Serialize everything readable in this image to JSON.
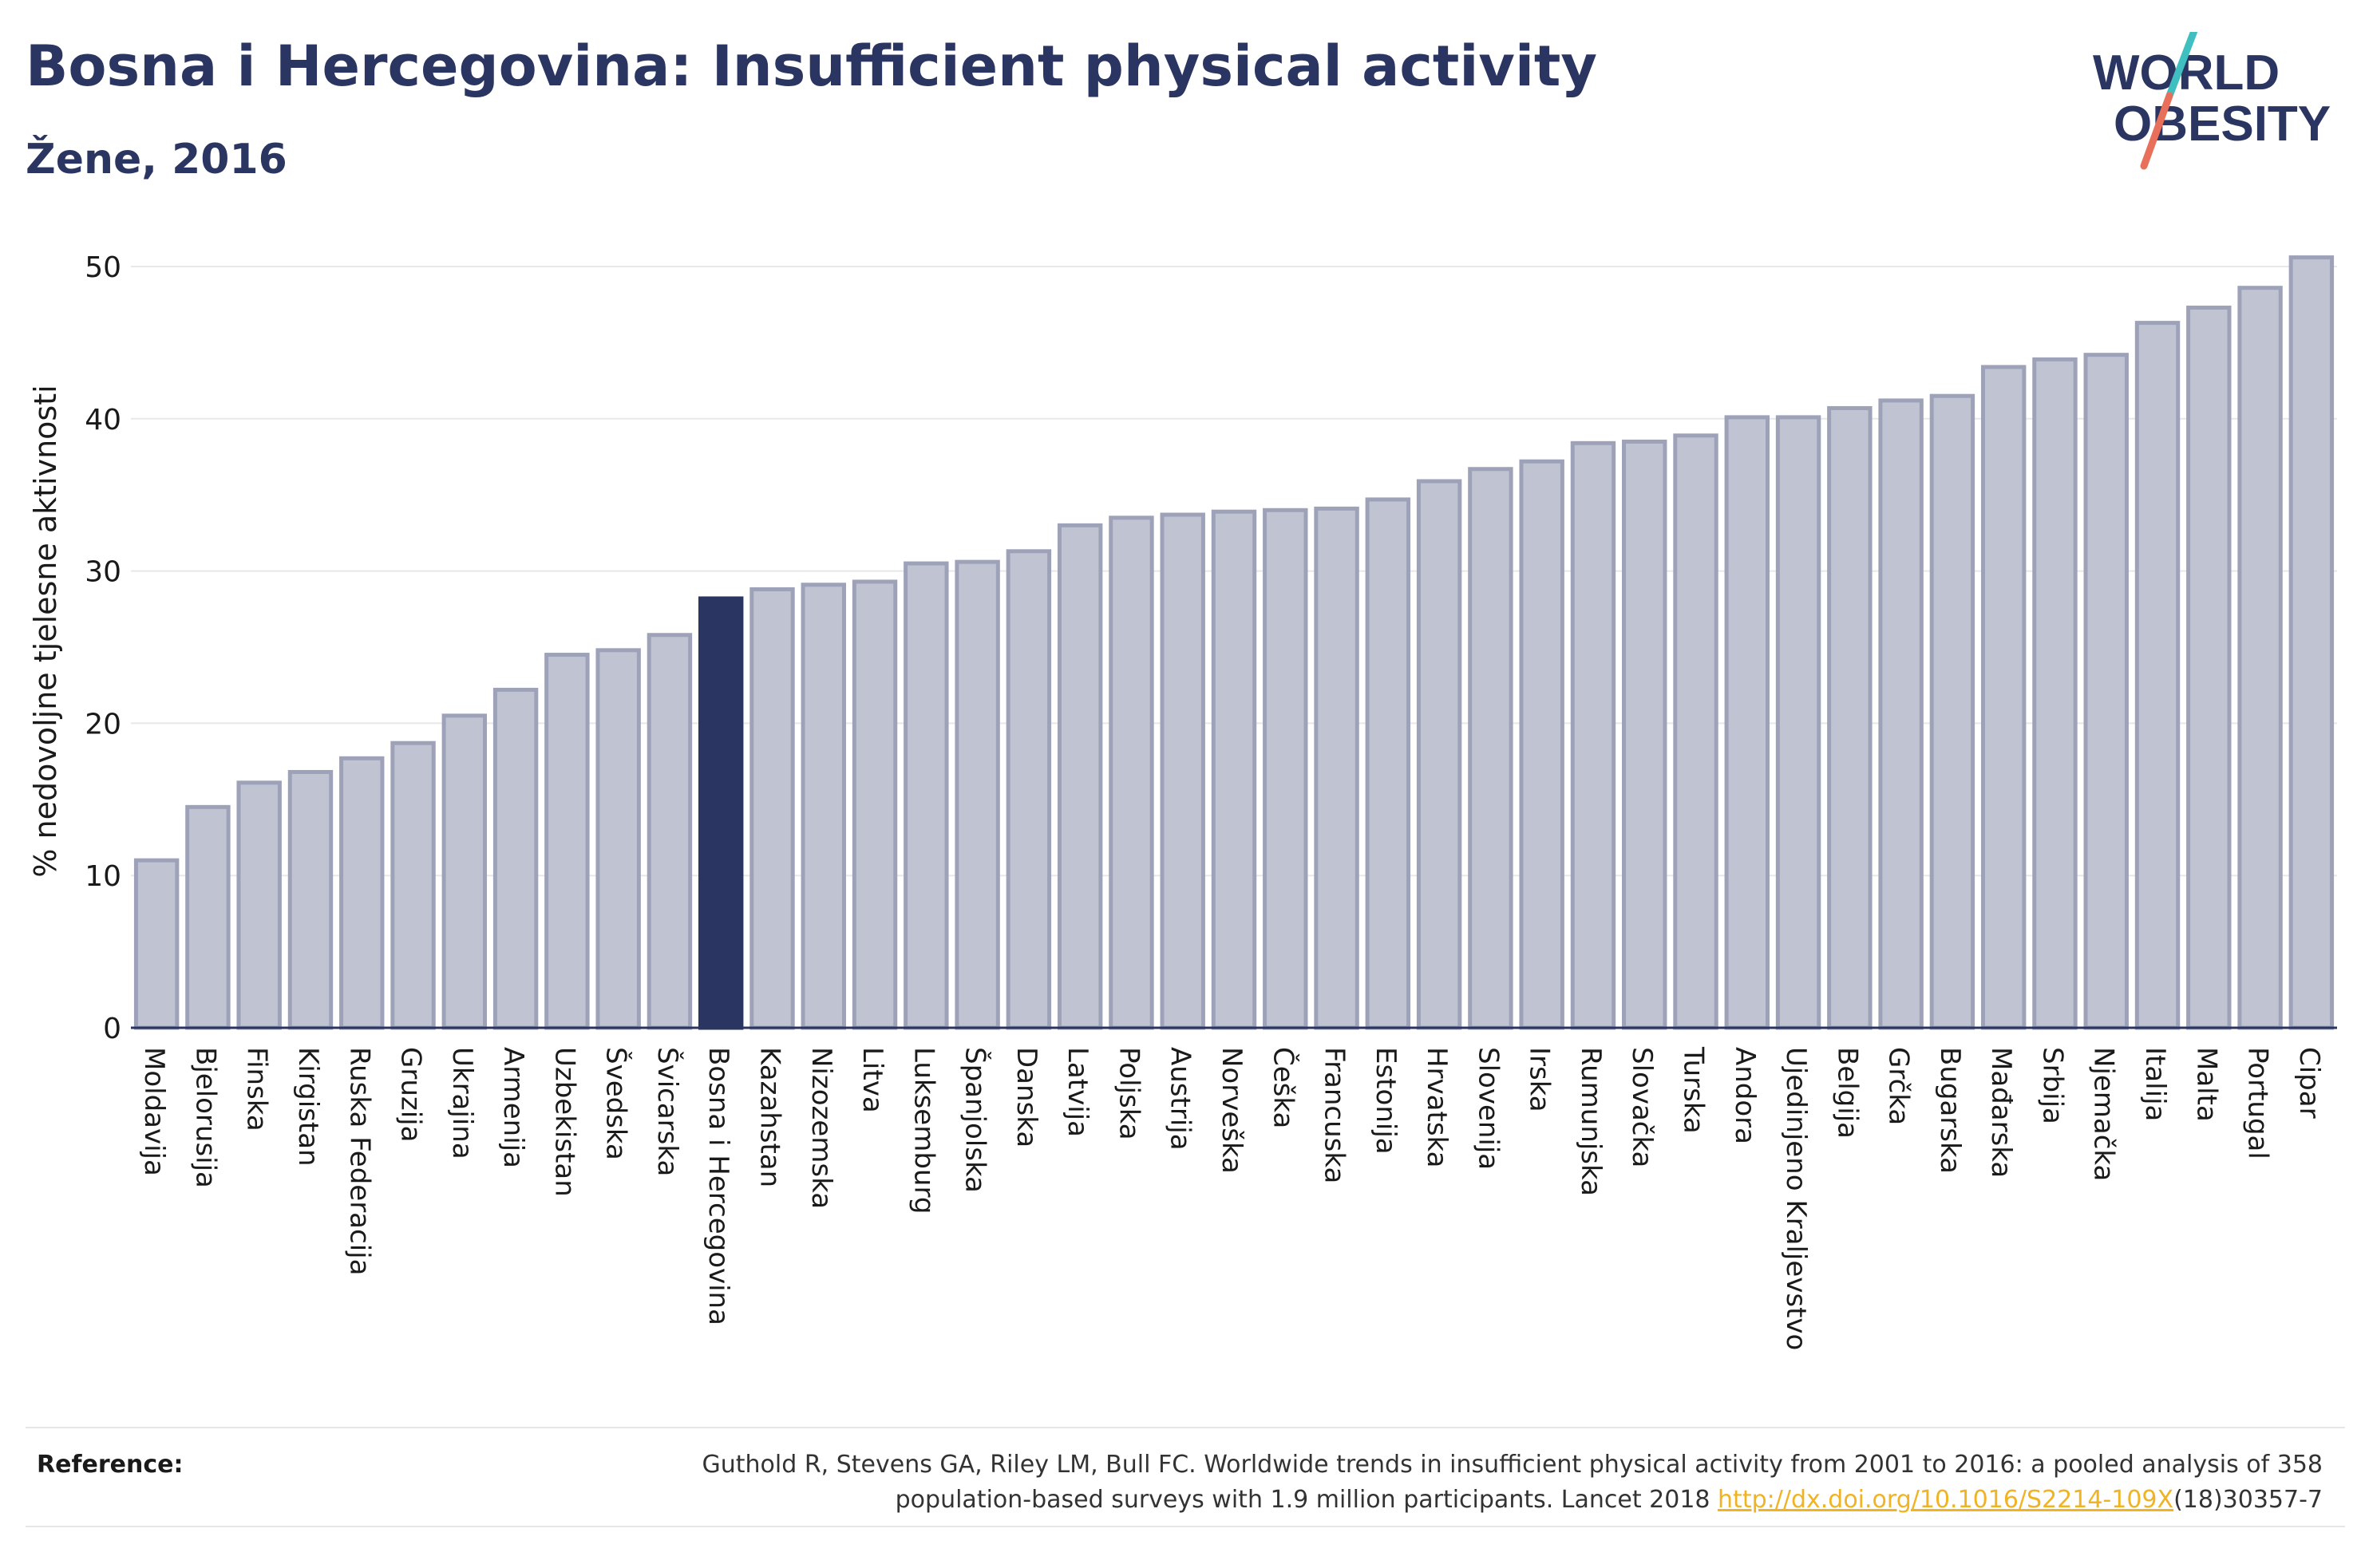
{
  "header": {
    "title": "Bosna i Hercegovina: Insufficient physical activity",
    "subtitle": "Žene, 2016"
  },
  "logo": {
    "line1": "WORLD",
    "line2": "OBESITY",
    "slash_colors": [
      "#3fbfbf",
      "#e8705a"
    ]
  },
  "colors": {
    "highlight": "#2b3562",
    "bar": "#c0c4d2",
    "bar_border": "#9da2b8",
    "axis": "#2b3562",
    "grid": "#e8e8e8"
  },
  "chart_data": {
    "type": "bar",
    "ylabel": "% nedovoljne tjelesne aktivnosti",
    "ylim": [
      0,
      52
    ],
    "yticks": [
      0,
      10,
      20,
      30,
      40,
      50
    ],
    "highlight": "Bosna i Hercegovina",
    "categories": [
      "Moldavija",
      "Bjelorusija",
      "Finska",
      "Kirgistan",
      "Ruska Federacija",
      "Gruzija",
      "Ukrajina",
      "Armenija",
      "Uzbekistan",
      "Švedska",
      "Švicarska",
      "Bosna i Hercegovina",
      "Kazahstan",
      "Nizozemska",
      "Litva",
      "Luksemburg",
      "Španjolska",
      "Danska",
      "Latvija",
      "Poljska",
      "Austrija",
      "Norveška",
      "Češka",
      "Francuska",
      "Estonija",
      "Hrvatska",
      "Slovenija",
      "Irska",
      "Rumunjska",
      "Slovačka",
      "Turska",
      "Andora",
      "Ujedinjeno Kraljevstvo",
      "Belgija",
      "Grčka",
      "Bugarska",
      "Mađarska",
      "Srbija",
      "Njemačka",
      "Italija",
      "Malta",
      "Portugal",
      "Cipar"
    ],
    "values": [
      11.0,
      14.5,
      16.1,
      16.8,
      17.7,
      18.7,
      20.5,
      22.2,
      24.5,
      24.8,
      25.8,
      28.2,
      28.8,
      29.1,
      29.3,
      30.5,
      30.6,
      31.3,
      33.0,
      33.5,
      33.7,
      33.9,
      34.0,
      34.1,
      34.7,
      35.9,
      36.7,
      37.2,
      38.4,
      38.5,
      38.9,
      40.1,
      40.1,
      40.7,
      41.2,
      41.5,
      43.4,
      43.9,
      44.2,
      46.3,
      47.3,
      48.6,
      50.6
    ]
  },
  "reference": {
    "label": "Reference:",
    "line1": "Guthold R, Stevens GA, Riley LM, Bull FC. Worldwide trends in insufficient physical activity from 2001 to 2016: a pooled analysis of 358",
    "line2_prefix": "population-based surveys with 1.9 million participants. Lancet 2018 ",
    "link": "http://dx.doi.org/10.1016/S2214-109X",
    "line2_suffix": "(18)30357-7"
  }
}
